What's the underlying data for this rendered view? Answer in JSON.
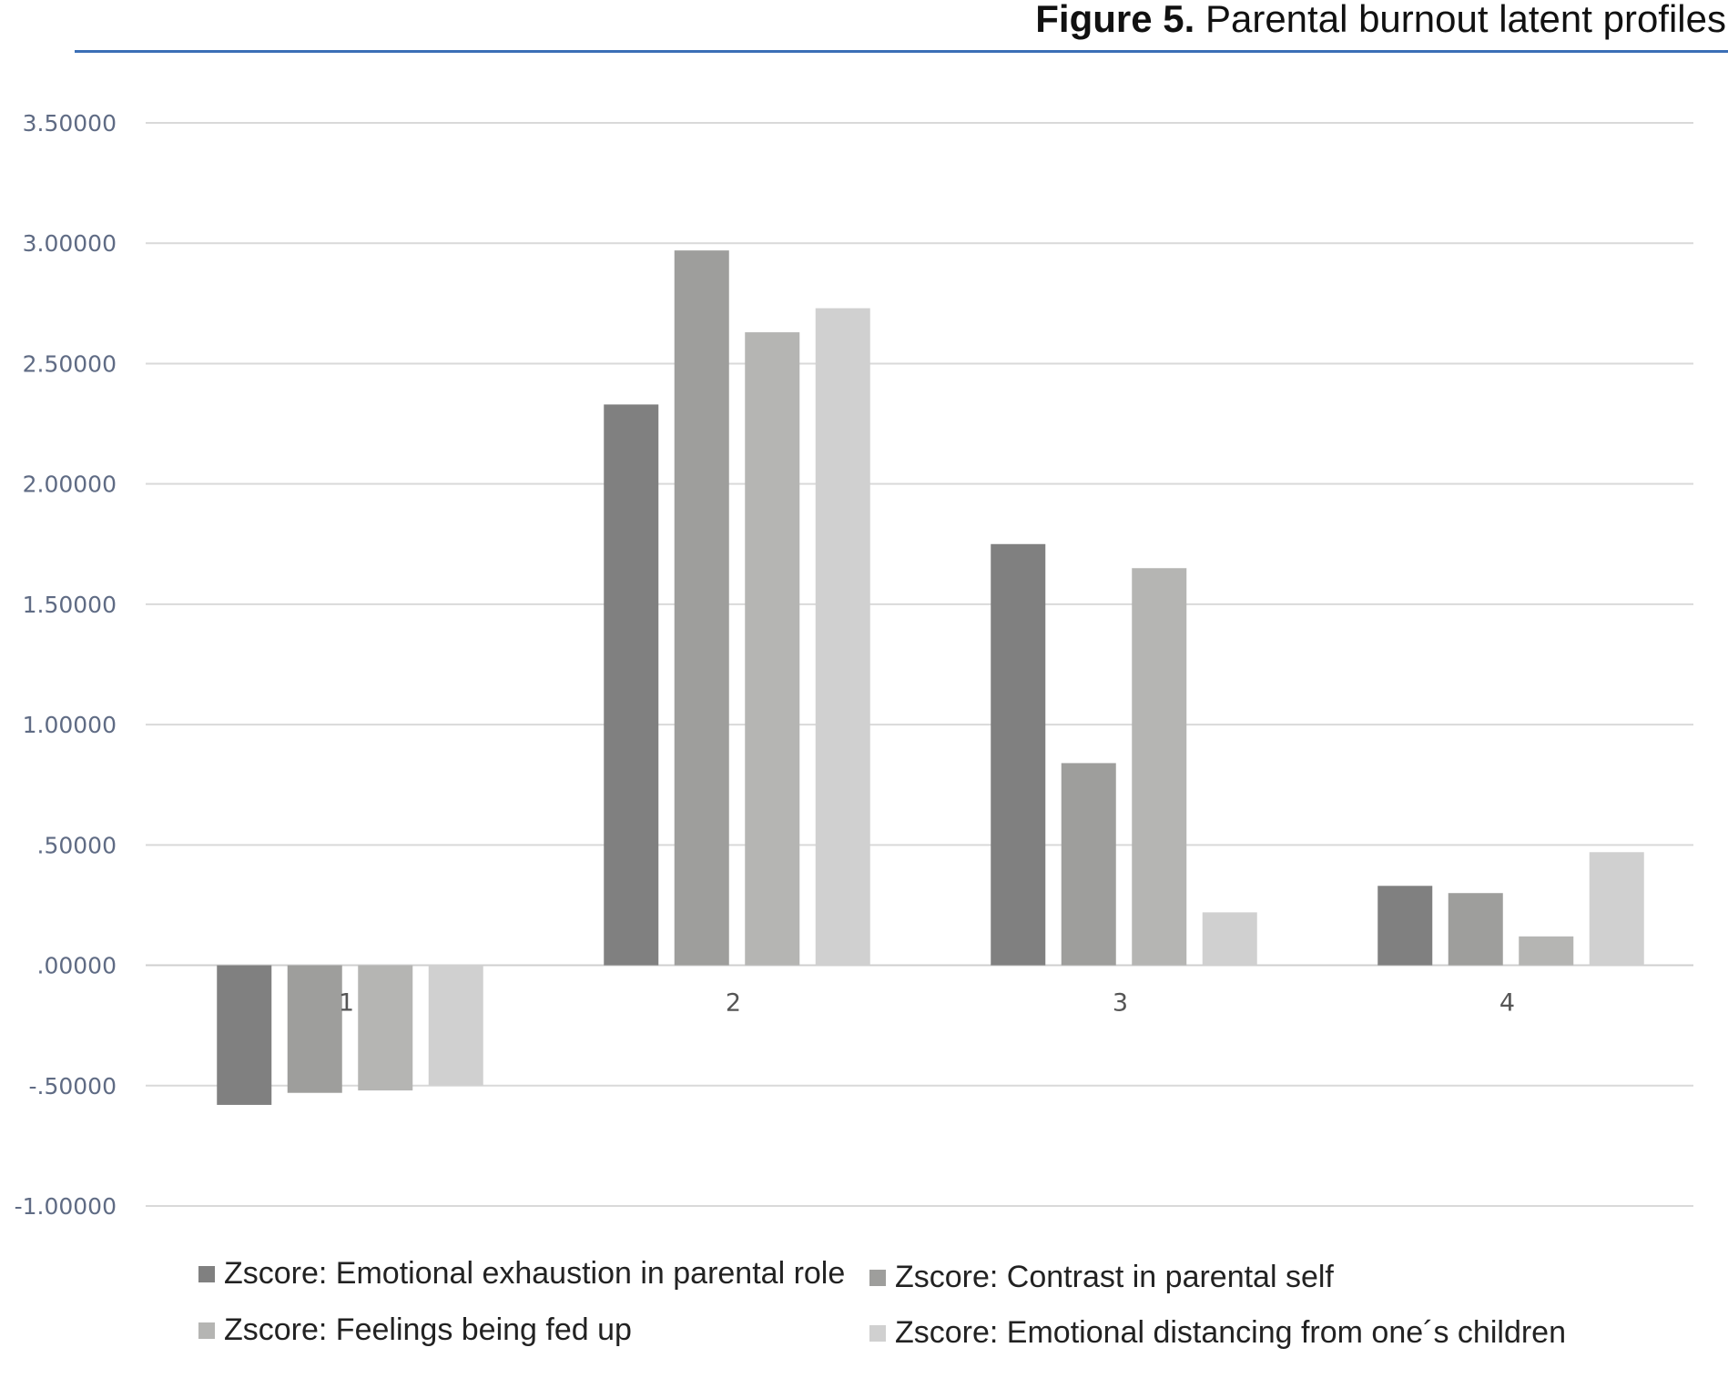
{
  "caption": {
    "bold": "Figure 5.",
    "text": "Parental burnout latent profiles"
  },
  "chart_data": {
    "type": "bar",
    "title": "",
    "xlabel": "",
    "ylabel": "",
    "categories": [
      "1",
      "2",
      "3",
      "4"
    ],
    "ylim": [
      -1.0,
      3.5
    ],
    "yticks": [
      3.5,
      3.0,
      2.5,
      2.0,
      1.5,
      1.0,
      0.5,
      0.0,
      -0.5,
      -1.0
    ],
    "ytick_labels": [
      "3.50000",
      "3.00000",
      "2.50000",
      "2.00000",
      "1.50000",
      "1.00000",
      ".50000",
      ".00000",
      "-.50000",
      "-1.00000"
    ],
    "grid": true,
    "legend_position": "bottom",
    "series": [
      {
        "name": "Zscore: Emotional exhaustion in parental role",
        "color": "#808080",
        "values": [
          -0.58,
          2.33,
          1.75,
          0.33
        ]
      },
      {
        "name": "Zscore: Contrast in parental self",
        "color": "#9e9e9c",
        "values": [
          -0.53,
          2.97,
          0.84,
          0.3
        ]
      },
      {
        "name": "Zscore: Feelings being fed up",
        "color": "#b5b5b3",
        "values": [
          -0.52,
          2.63,
          1.65,
          0.12
        ]
      },
      {
        "name": "Zscore: Emotional distancing from one´s children",
        "color": "#d0d0d0",
        "values": [
          -0.5,
          2.73,
          0.22,
          0.47
        ]
      }
    ]
  }
}
